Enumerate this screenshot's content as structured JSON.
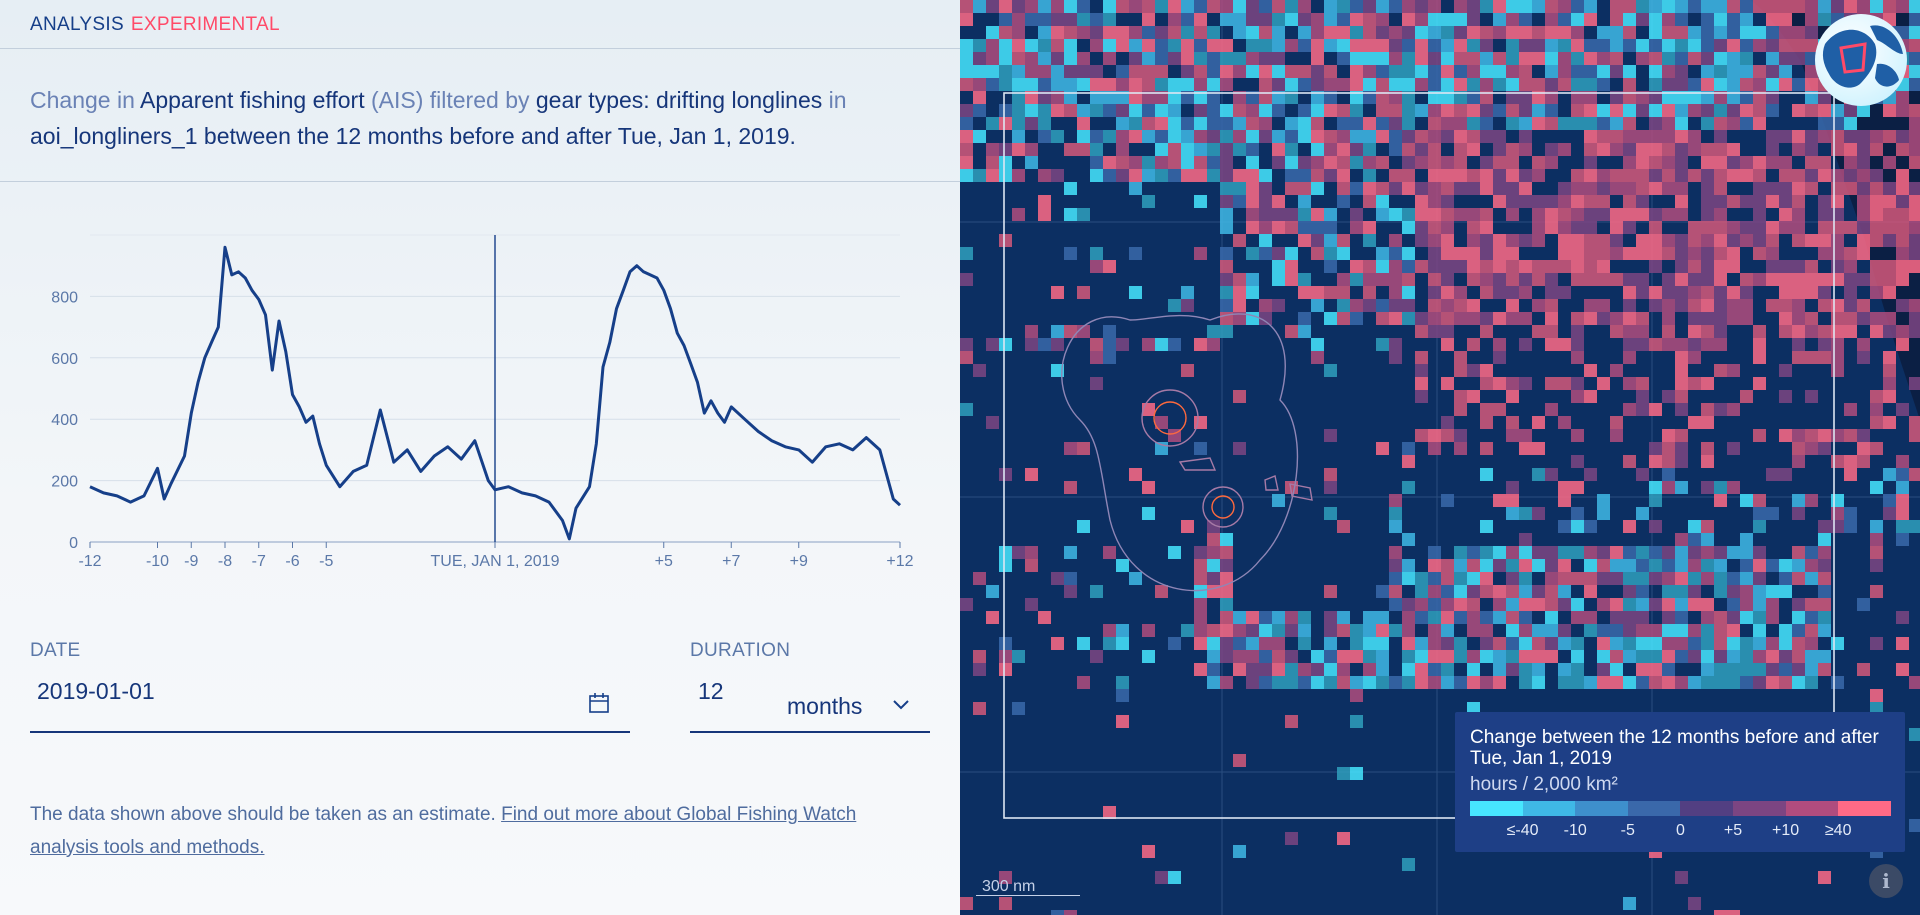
{
  "header": {
    "title": "ANALYSIS",
    "badge": "EXPERIMENTAL"
  },
  "description": {
    "p1": "Change in ",
    "dataset": "Apparent fishing effort",
    "source": " (AIS)",
    "p2": " filtered by ",
    "filter": "gear types: drifting longlines",
    "p3": " in",
    "area": "aoi_longliners_1 between the 12 months before and after Tue, Jan 1, 2019."
  },
  "chart_data": {
    "type": "line",
    "xlabel": "",
    "ylabel": "",
    "xlim": [
      -12,
      12
    ],
    "ylim": [
      0,
      1000
    ],
    "yticks": [
      0,
      200,
      400,
      600,
      800
    ],
    "xticks": [
      {
        "v": -12,
        "label": "-12"
      },
      {
        "v": -10,
        "label": "-10"
      },
      {
        "v": -9,
        "label": "-9"
      },
      {
        "v": -8,
        "label": "-8"
      },
      {
        "v": -7,
        "label": "-7"
      },
      {
        "v": -6,
        "label": "-6"
      },
      {
        "v": -5,
        "label": "-5"
      },
      {
        "v": 0,
        "label": "TUE, JAN 1, 2019"
      },
      {
        "v": 5,
        "label": "+5"
      },
      {
        "v": 7,
        "label": "+7"
      },
      {
        "v": 9,
        "label": "+9"
      },
      {
        "v": 12,
        "label": "+12"
      }
    ],
    "marker_x": 0,
    "color": "#163f89",
    "series": [
      {
        "values": [
          [
            -12,
            180
          ],
          [
            -11.6,
            160
          ],
          [
            -11.2,
            150
          ],
          [
            -10.8,
            130
          ],
          [
            -10.4,
            150
          ],
          [
            -10,
            240
          ],
          [
            -9.8,
            140
          ],
          [
            -9.6,
            190
          ],
          [
            -9.2,
            280
          ],
          [
            -9,
            420
          ],
          [
            -8.8,
            520
          ],
          [
            -8.6,
            600
          ],
          [
            -8.4,
            650
          ],
          [
            -8.2,
            700
          ],
          [
            -8,
            960
          ],
          [
            -7.8,
            870
          ],
          [
            -7.6,
            880
          ],
          [
            -7.4,
            860
          ],
          [
            -7.2,
            820
          ],
          [
            -7,
            790
          ],
          [
            -6.8,
            740
          ],
          [
            -6.6,
            560
          ],
          [
            -6.4,
            720
          ],
          [
            -6.2,
            620
          ],
          [
            -6,
            480
          ],
          [
            -5.8,
            440
          ],
          [
            -5.6,
            390
          ],
          [
            -5.4,
            410
          ],
          [
            -5.2,
            320
          ],
          [
            -5,
            250
          ],
          [
            -4.6,
            180
          ],
          [
            -4.2,
            230
          ],
          [
            -3.8,
            250
          ],
          [
            -3.4,
            430
          ],
          [
            -3,
            260
          ],
          [
            -2.6,
            300
          ],
          [
            -2.2,
            230
          ],
          [
            -1.8,
            280
          ],
          [
            -1.4,
            310
          ],
          [
            -1,
            270
          ],
          [
            -0.6,
            330
          ],
          [
            -0.2,
            200
          ],
          [
            0,
            170
          ],
          [
            0.4,
            180
          ],
          [
            0.8,
            160
          ],
          [
            1.2,
            150
          ],
          [
            1.6,
            130
          ],
          [
            2,
            70
          ],
          [
            2.2,
            10
          ],
          [
            2.4,
            110
          ],
          [
            2.8,
            180
          ],
          [
            3,
            320
          ],
          [
            3.2,
            570
          ],
          [
            3.4,
            650
          ],
          [
            3.6,
            760
          ],
          [
            3.8,
            820
          ],
          [
            4,
            880
          ],
          [
            4.2,
            900
          ],
          [
            4.4,
            880
          ],
          [
            4.6,
            870
          ],
          [
            4.8,
            860
          ],
          [
            5,
            820
          ],
          [
            5.2,
            760
          ],
          [
            5.4,
            680
          ],
          [
            5.6,
            640
          ],
          [
            5.8,
            580
          ],
          [
            6,
            520
          ],
          [
            6.2,
            420
          ],
          [
            6.4,
            460
          ],
          [
            6.6,
            420
          ],
          [
            6.8,
            390
          ],
          [
            7,
            440
          ],
          [
            7.4,
            400
          ],
          [
            7.8,
            360
          ],
          [
            8.2,
            330
          ],
          [
            8.6,
            310
          ],
          [
            9,
            300
          ],
          [
            9.4,
            260
          ],
          [
            9.8,
            310
          ],
          [
            10.2,
            320
          ],
          [
            10.6,
            300
          ],
          [
            11,
            340
          ],
          [
            11.4,
            300
          ],
          [
            11.8,
            140
          ],
          [
            12,
            120
          ]
        ]
      }
    ]
  },
  "form": {
    "date_label": "DATE",
    "date_value": "2019-01-01",
    "duration_label": "DURATION",
    "duration_value": "12",
    "duration_unit": "months"
  },
  "note": {
    "text": "The data shown above should be taken as an estimate. ",
    "link": "Find out more about Global Fishing Watch analysis tools and methods."
  },
  "legend": {
    "title": "Change between the 12 months before and after Tue, Jan 1, 2019",
    "unit": "hours / 2,000 km²",
    "colors": [
      "#47e6ff",
      "#3fb8e6",
      "#3e8fcc",
      "#3a68aa",
      "#523f82",
      "#7c4582",
      "#b04c7e",
      "#ff6a86"
    ],
    "ticks": [
      "≤-40",
      "-10",
      "-5",
      "0",
      "+5",
      "+10",
      "≥40"
    ]
  },
  "map": {
    "scale_label": "300 nm"
  }
}
